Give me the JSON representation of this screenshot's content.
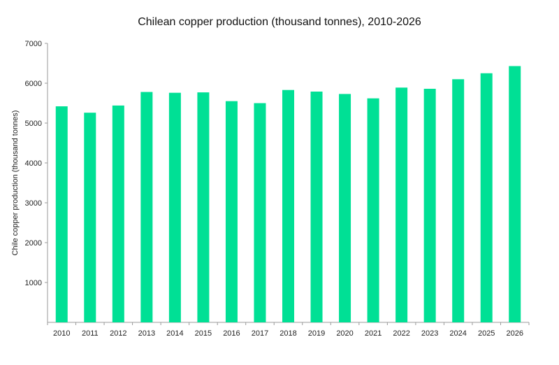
{
  "chart_data": {
    "type": "bar",
    "title": "Chilean copper production (thousand tonnes), 2010-2026",
    "xlabel": "",
    "ylabel": "Chile copper production (thousand tonnes)",
    "categories": [
      "2010",
      "2011",
      "2012",
      "2013",
      "2014",
      "2015",
      "2016",
      "2017",
      "2018",
      "2019",
      "2020",
      "2021",
      "2022",
      "2023",
      "2024",
      "2025",
      "2026"
    ],
    "values": [
      5420,
      5260,
      5440,
      5780,
      5760,
      5770,
      5550,
      5500,
      5830,
      5790,
      5730,
      5620,
      5890,
      5860,
      6100,
      6250,
      6430
    ],
    "ylim": [
      0,
      7000
    ],
    "yticks": [
      1000,
      2000,
      3000,
      4000,
      5000,
      6000,
      7000
    ],
    "grid": false,
    "legend": "none",
    "bar_color": "#00E095"
  }
}
